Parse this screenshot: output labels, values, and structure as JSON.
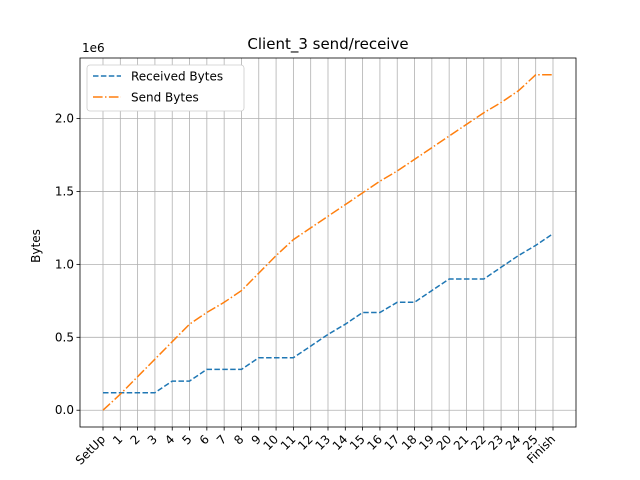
{
  "chart_data": {
    "type": "line",
    "title": "Client_3 send/receive",
    "xlabel": "",
    "ylabel": "Bytes",
    "y_offset_text": "1e6",
    "ylim": [
      -0.115,
      2.415
    ],
    "yticks": [
      0.0,
      0.5,
      1.0,
      1.5,
      2.0
    ],
    "ytick_labels": [
      "0.0",
      "0.5",
      "1.0",
      "1.5",
      "2.0"
    ],
    "categories": [
      "SetUp",
      "1",
      "2",
      "3",
      "4",
      "5",
      "6",
      "7",
      "8",
      "9",
      "10",
      "11",
      "12",
      "13",
      "14",
      "15",
      "16",
      "17",
      "18",
      "19",
      "20",
      "21",
      "22",
      "23",
      "24",
      "25",
      "Finish"
    ],
    "grid": true,
    "legend_position": "upper left",
    "series": [
      {
        "name": "Received Bytes",
        "color": "#1f77b4",
        "linestyle": "dashed",
        "values": [
          0.12,
          0.12,
          0.12,
          0.12,
          0.2,
          0.2,
          0.28,
          0.28,
          0.28,
          0.36,
          0.36,
          0.36,
          0.44,
          0.52,
          0.59,
          0.67,
          0.67,
          0.74,
          0.74,
          0.82,
          0.9,
          0.9,
          0.9,
          0.98,
          1.06,
          1.13,
          1.21
        ]
      },
      {
        "name": "Send Bytes",
        "color": "#ff7f0e",
        "linestyle": "dashdot",
        "values": [
          0.0,
          0.11,
          0.23,
          0.35,
          0.47,
          0.59,
          0.67,
          0.74,
          0.82,
          0.94,
          1.06,
          1.17,
          1.25,
          1.33,
          1.41,
          1.49,
          1.57,
          1.64,
          1.72,
          1.8,
          1.88,
          1.96,
          2.04,
          2.11,
          2.19,
          2.3,
          2.3
        ]
      }
    ]
  }
}
